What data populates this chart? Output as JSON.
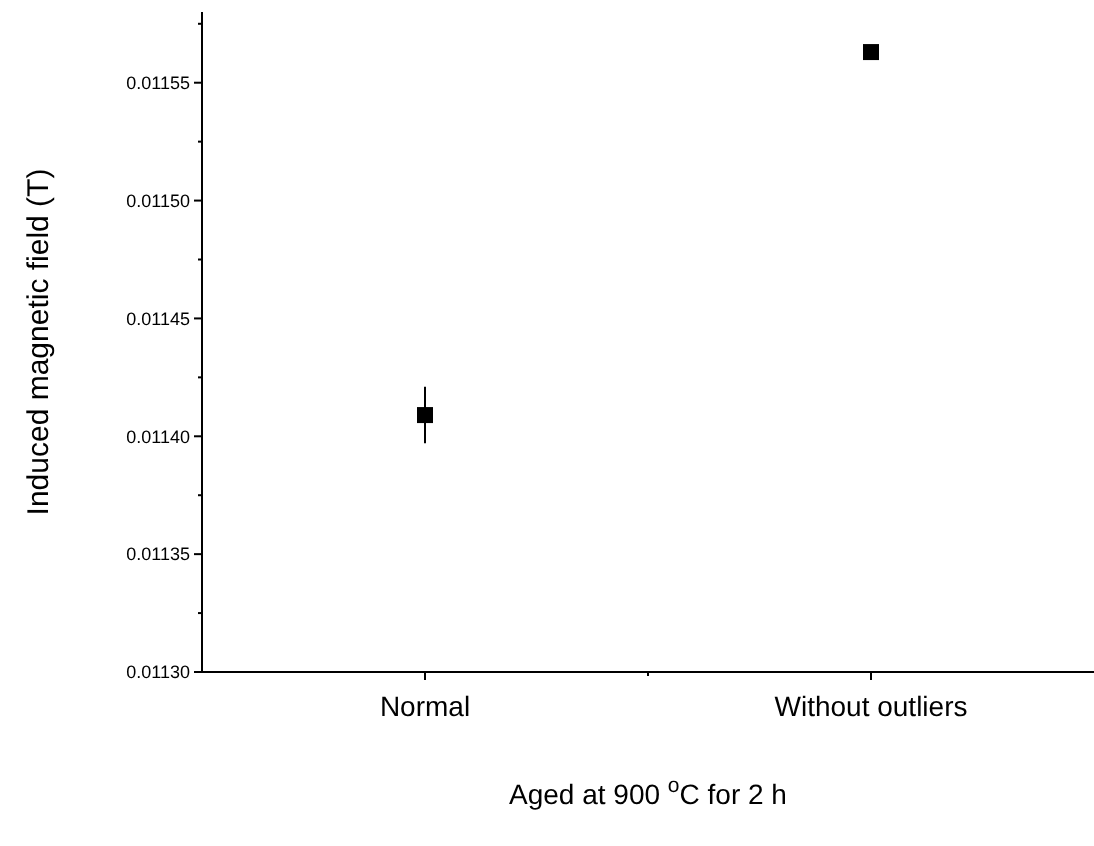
{
  "chart_data": {
    "type": "scatter",
    "xlabel": "Aged at 900 $^{o}$C for 2 h",
    "ylabel": "Induced magnetic field (T)",
    "categories": [
      "Normal",
      "Without outliers"
    ],
    "series": [
      {
        "color": "#000000",
        "values": [
          0.011409,
          0.011563
        ],
        "errors": [
          1.2e-05,
          null
        ]
      }
    ],
    "marker": "square",
    "ylim": [
      0.0113,
      0.01158
    ],
    "yticks": [
      {
        "value": 0.0113,
        "label": "0.01130"
      },
      {
        "value": 0.011325,
        "label": null
      },
      {
        "value": 0.01135,
        "label": "0.01135"
      },
      {
        "value": 0.011375,
        "label": null
      },
      {
        "value": 0.0114,
        "label": "0.01140"
      },
      {
        "value": 0.011425,
        "label": null
      },
      {
        "value": 0.01145,
        "label": "0.01145"
      },
      {
        "value": 0.011475,
        "label": null
      },
      {
        "value": 0.0115,
        "label": "0.01150"
      },
      {
        "value": 0.011525,
        "label": null
      },
      {
        "value": 0.01155,
        "label": "0.01155"
      },
      {
        "value": 0.011575,
        "label": null
      }
    ],
    "grid": false
  }
}
